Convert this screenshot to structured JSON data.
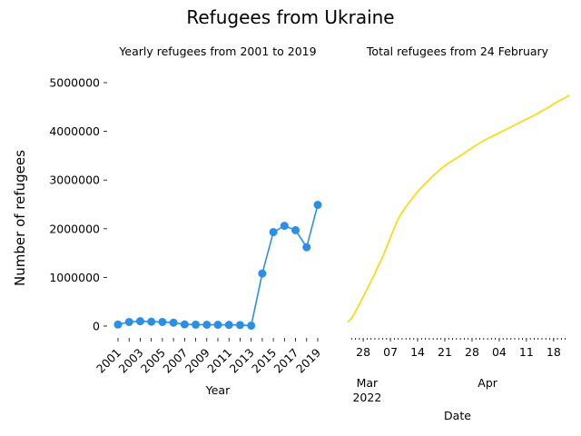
{
  "figure": {
    "title": "Refugees from Ukraine",
    "shared_ylabel": "Number of refugees"
  },
  "chart_data": [
    {
      "type": "line",
      "title": "Yearly refugees from 2001 to 2019",
      "xlabel": "Year",
      "ylabel": "Number of refugees",
      "x": [
        2001,
        2002,
        2003,
        2004,
        2005,
        2006,
        2007,
        2008,
        2009,
        2010,
        2011,
        2012,
        2013,
        2014,
        2015,
        2016,
        2017,
        2018,
        2019
      ],
      "series": [
        {
          "values": [
            32000,
            85000,
            100000,
            90000,
            85000,
            70000,
            35000,
            30000,
            28000,
            27000,
            25000,
            22000,
            10000,
            1080000,
            1930000,
            2060000,
            1970000,
            1620000,
            2490000
          ],
          "color": "#2a8fe6"
        }
      ],
      "xticks": [
        "2001",
        "2003",
        "2005",
        "2007",
        "2009",
        "2011",
        "2013",
        "2015",
        "2017",
        "2019"
      ],
      "yticks": [
        "0",
        "1000000",
        "2000000",
        "3000000",
        "4000000",
        "5000000"
      ],
      "ylim": [
        -100000,
        5400000
      ],
      "grid": false,
      "marker": "circle"
    },
    {
      "type": "line",
      "title": "Total refugees from 24 February",
      "xlabel": "Date",
      "x": [
        "2022-02-24",
        "2022-02-25",
        "2022-02-26",
        "2022-02-27",
        "2022-02-28",
        "2022-03-01",
        "2022-03-02",
        "2022-03-03",
        "2022-03-04",
        "2022-03-05",
        "2022-03-06",
        "2022-03-07",
        "2022-03-08",
        "2022-03-09",
        "2022-03-10",
        "2022-03-11",
        "2022-03-12",
        "2022-03-13",
        "2022-03-14",
        "2022-03-15",
        "2022-03-16",
        "2022-03-17",
        "2022-03-18",
        "2022-03-19",
        "2022-03-20",
        "2022-03-21",
        "2022-03-22",
        "2022-03-23",
        "2022-03-24",
        "2022-03-25",
        "2022-03-26",
        "2022-03-27",
        "2022-03-28",
        "2022-03-29",
        "2022-03-30",
        "2022-03-31",
        "2022-04-01",
        "2022-04-02",
        "2022-04-03",
        "2022-04-04",
        "2022-04-05",
        "2022-04-06",
        "2022-04-07",
        "2022-04-08",
        "2022-04-09",
        "2022-04-10",
        "2022-04-11",
        "2022-04-12",
        "2022-04-13",
        "2022-04-14",
        "2022-04-15",
        "2022-04-16",
        "2022-04-17",
        "2022-04-18",
        "2022-04-19",
        "2022-04-20",
        "2022-04-21",
        "2022-04-22"
      ],
      "series": [
        {
          "values": [
            80000,
            160000,
            300000,
            450000,
            600000,
            760000,
            920000,
            1080000,
            1260000,
            1420000,
            1620000,
            1820000,
            2020000,
            2200000,
            2340000,
            2450000,
            2560000,
            2660000,
            2760000,
            2850000,
            2930000,
            3010000,
            3090000,
            3160000,
            3230000,
            3290000,
            3350000,
            3400000,
            3450000,
            3500000,
            3550000,
            3610000,
            3660000,
            3710000,
            3760000,
            3810000,
            3850000,
            3890000,
            3930000,
            3970000,
            4010000,
            4050000,
            4090000,
            4130000,
            4170000,
            4210000,
            4250000,
            4290000,
            4330000,
            4370000,
            4420000,
            4460000,
            4510000,
            4560000,
            4610000,
            4650000,
            4690000,
            4740000
          ],
          "color": "#ffd700"
        }
      ],
      "xticks_major": [
        "28",
        "07",
        "14",
        "21",
        "28",
        "04",
        "11",
        "18"
      ],
      "xticks_month": [
        "Mar\n2022",
        "Apr"
      ],
      "grid": false
    }
  ]
}
